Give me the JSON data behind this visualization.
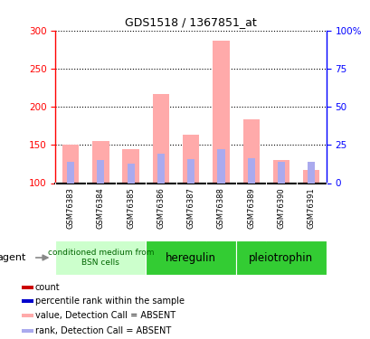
{
  "title": "GDS1518 / 1367851_at",
  "samples": [
    "GSM76383",
    "GSM76384",
    "GSM76385",
    "GSM76386",
    "GSM76387",
    "GSM76388",
    "GSM76389",
    "GSM76390",
    "GSM76391"
  ],
  "value_absent": [
    150,
    155,
    145,
    217,
    163,
    287,
    183,
    130,
    117
  ],
  "rank_absent": [
    128,
    130,
    126,
    138,
    131,
    145,
    133,
    128,
    128
  ],
  "ylim_left": [
    100,
    300
  ],
  "ylim_right": [
    0,
    100
  ],
  "yticks_left": [
    100,
    150,
    200,
    250,
    300
  ],
  "yticks_right": [
    0,
    25,
    50,
    75,
    100
  ],
  "yticklabels_right": [
    "0",
    "25",
    "50",
    "75",
    "100%"
  ],
  "bar_width": 0.55,
  "value_color": "#ffaaaa",
  "rank_color": "#aaaaee",
  "count_color": "#cc0000",
  "percentile_color": "#0000cc",
  "grid_color": "black",
  "bg_color": "#ffffff",
  "plot_bg": "#ffffff",
  "tick_label_area_bg": "#cccccc",
  "agent_label": "agent",
  "group_bg_light": "#ccffcc",
  "group_bg_dark": "#33cc33",
  "groups": [
    {
      "label": "conditioned medium from\nBSN cells",
      "start": 0,
      "end": 2,
      "light": true
    },
    {
      "label": "heregulin",
      "start": 3,
      "end": 5,
      "light": false
    },
    {
      "label": "pleiotrophin",
      "start": 6,
      "end": 8,
      "light": false
    }
  ],
  "legend_items": [
    {
      "color": "#cc0000",
      "label": "count"
    },
    {
      "color": "#0000cc",
      "label": "percentile rank within the sample"
    },
    {
      "color": "#ffaaaa",
      "label": "value, Detection Call = ABSENT"
    },
    {
      "color": "#aaaaee",
      "label": "rank, Detection Call = ABSENT"
    }
  ]
}
